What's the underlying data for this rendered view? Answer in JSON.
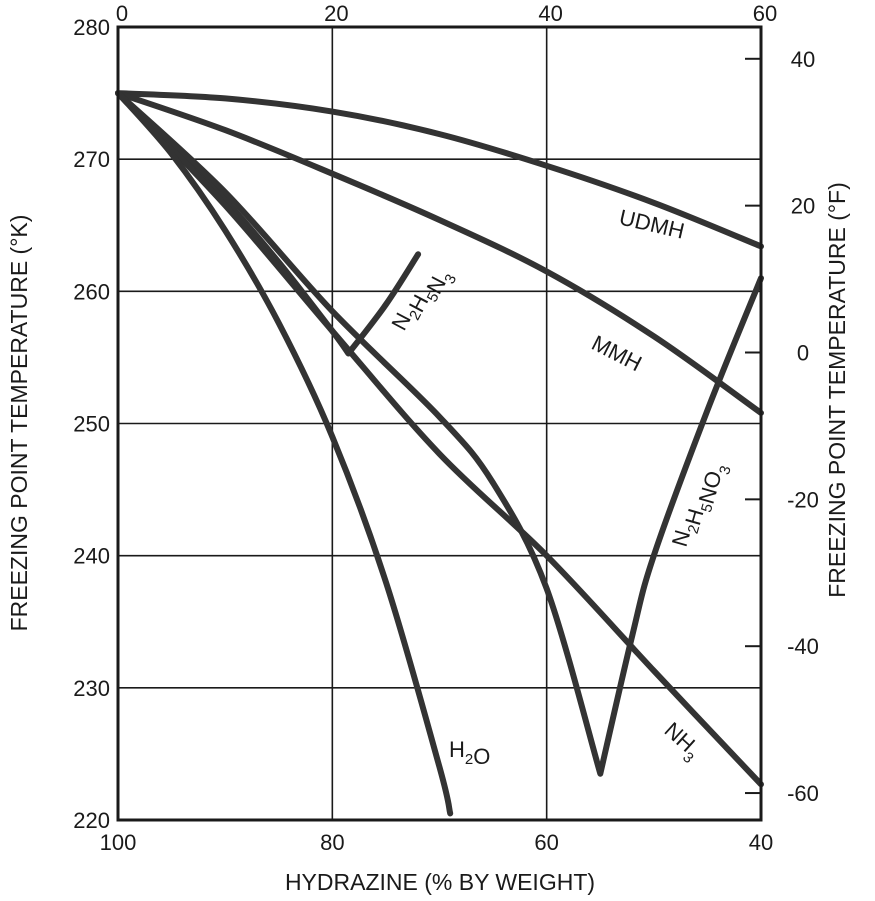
{
  "chart_data": {
    "type": "line",
    "xlabel": "HYDRAZINE (% BY WEIGHT)",
    "ylabel_left": "FREEZING POINT TEMPERATURE (°K)",
    "ylabel_right": "FREEZING POINT TEMPERATURE (°F)",
    "xlim": [
      100,
      40
    ],
    "ylim": [
      220,
      280
    ],
    "x_ticks": [
      "100",
      "80",
      "60",
      "40"
    ],
    "y_ticks_left": [
      "220",
      "230",
      "240",
      "250",
      "260",
      "270",
      "280"
    ],
    "top_ticks": [
      "0",
      "20",
      "40",
      "60"
    ],
    "right_ticks": [
      "-60",
      "-40",
      "-20",
      "0",
      "20",
      "40"
    ],
    "grid": true,
    "series": [
      {
        "name": "UDMH",
        "name_parts": [
          {
            "t": "UDMH",
            "sub": false
          }
        ],
        "x": [
          100,
          90,
          80,
          70,
          60,
          50,
          40
        ],
        "y": [
          275.0,
          274.6,
          273.6,
          271.9,
          269.5,
          266.7,
          263.4
        ]
      },
      {
        "name": "MMH",
        "name_parts": [
          {
            "t": "MMH",
            "sub": false
          }
        ],
        "x": [
          100,
          90,
          80,
          70,
          60,
          50,
          40
        ],
        "y": [
          275.0,
          272.2,
          268.9,
          265.4,
          261.5,
          256.6,
          250.8
        ]
      },
      {
        "name": "N2H5N3",
        "name_parts": [
          {
            "t": "N",
            "sub": false
          },
          {
            "t": "2",
            "sub": true
          },
          {
            "t": "H",
            "sub": false
          },
          {
            "t": "5",
            "sub": true
          },
          {
            "t": "N",
            "sub": false
          },
          {
            "t": "3",
            "sub": true
          }
        ],
        "x": [
          100,
          95,
          90,
          85,
          80,
          78.5,
          75,
          72
        ],
        "y": [
          275.0,
          271.0,
          266.9,
          262.2,
          257.0,
          255.3,
          259.0,
          262.8
        ]
      },
      {
        "name": "NH3",
        "name_parts": [
          {
            "t": "NH",
            "sub": false
          },
          {
            "t": "3",
            "sub": true
          }
        ],
        "x": [
          100,
          90,
          80,
          70,
          60,
          50,
          40
        ],
        "y": [
          275.0,
          266.5,
          257.0,
          247.7,
          240.0,
          231.3,
          222.7
        ]
      },
      {
        "name": "N2H5NO3",
        "name_parts": [
          {
            "t": "N",
            "sub": false
          },
          {
            "t": "2",
            "sub": true
          },
          {
            "t": "H",
            "sub": false
          },
          {
            "t": "5",
            "sub": true
          },
          {
            "t": "NO",
            "sub": false
          },
          {
            "t": "3",
            "sub": true
          }
        ],
        "x": [
          100,
          90,
          80,
          70,
          65,
          60,
          55,
          52,
          50,
          45,
          40
        ],
        "y": [
          275.0,
          267.5,
          258.5,
          250.5,
          245.5,
          237.5,
          223.5,
          234.0,
          240.0,
          251.0,
          261.0
        ]
      },
      {
        "name": "H2O",
        "name_parts": [
          {
            "t": "H",
            "sub": false
          },
          {
            "t": "2",
            "sub": true
          },
          {
            "t": "O",
            "sub": false
          }
        ],
        "x": [
          100,
          95,
          90,
          85,
          80,
          75,
          70,
          69
        ],
        "y": [
          275.0,
          270.4,
          264.6,
          257.6,
          249.0,
          238.0,
          224.0,
          220.5
        ]
      }
    ]
  }
}
